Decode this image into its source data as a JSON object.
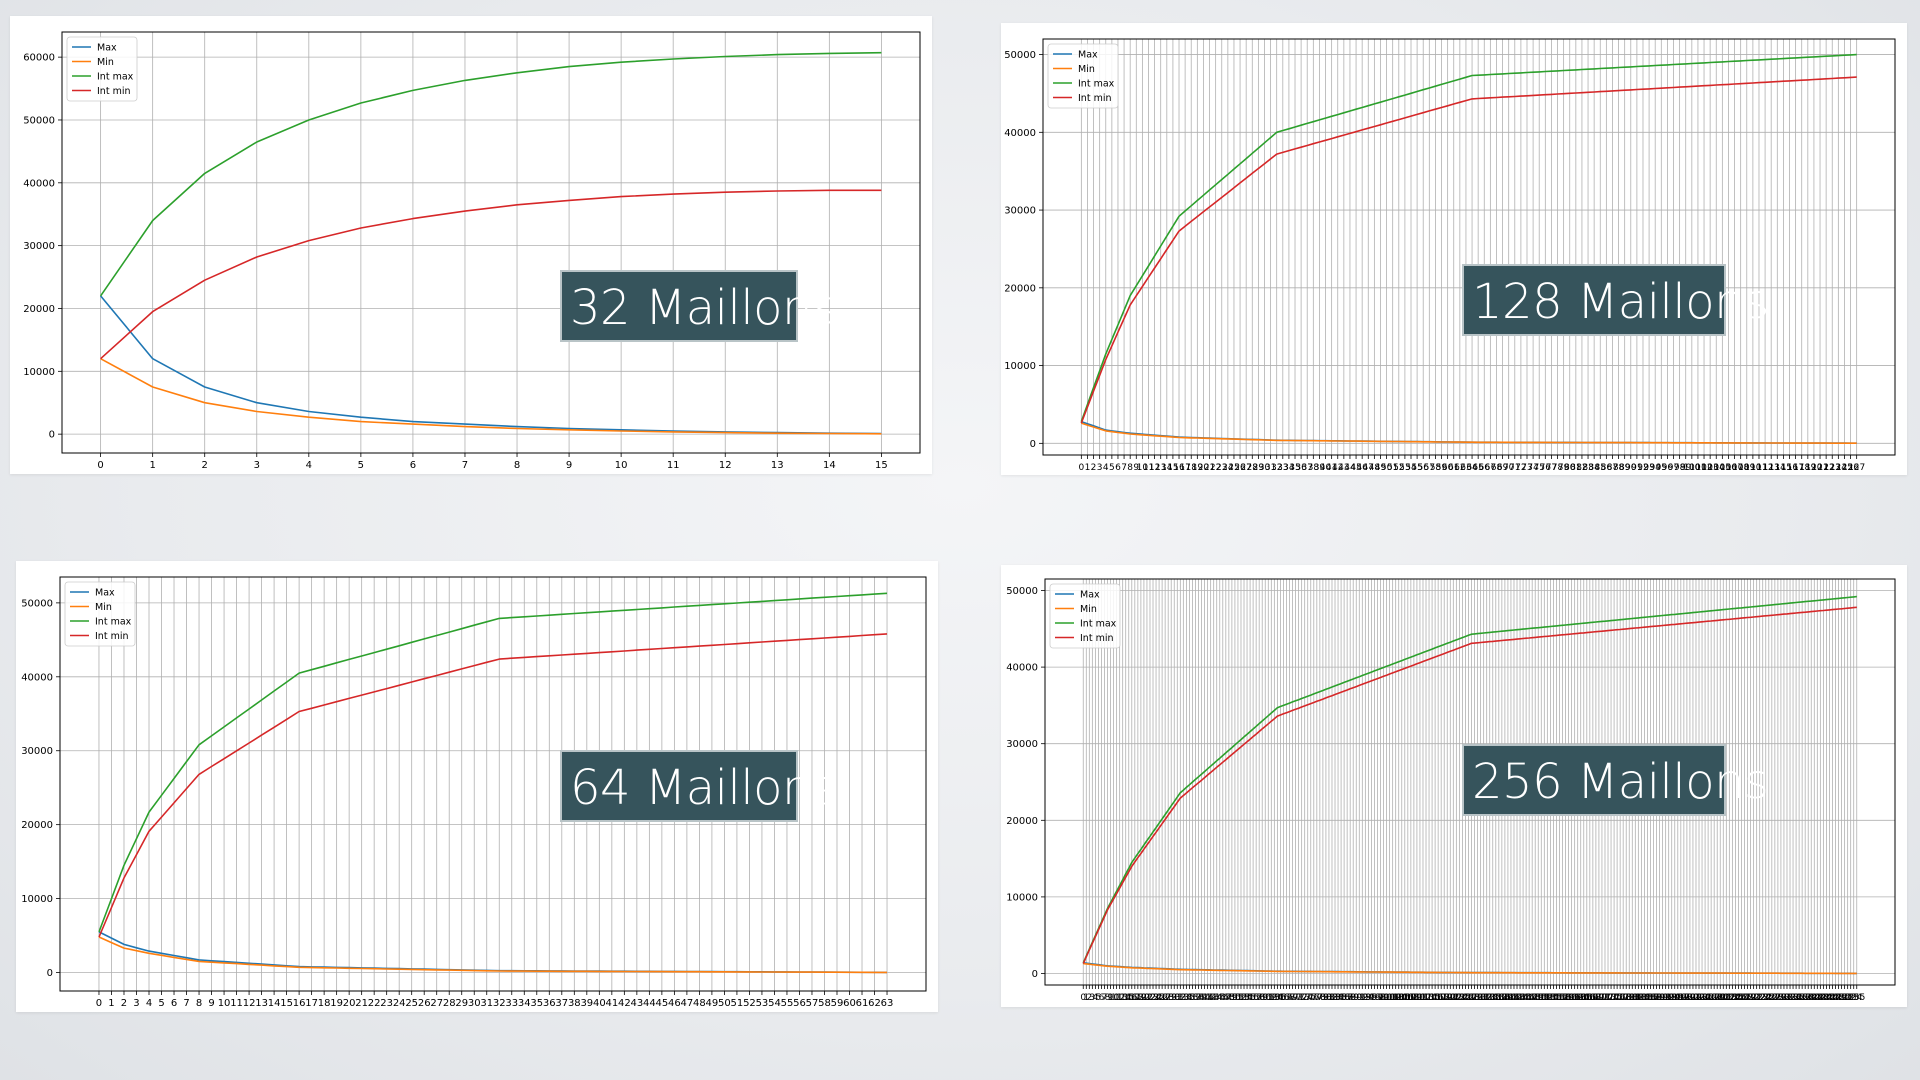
{
  "overlays": [
    {
      "text": "32 Maillons"
    },
    {
      "text": "128 Maillons"
    },
    {
      "text": "64 Maillons"
    },
    {
      "text": "256 Maillons"
    }
  ],
  "series_colors": {
    "Max": "#1f77b4",
    "Min": "#ff7f0e",
    "Int max": "#2ca02c",
    "Int min": "#d62728"
  },
  "chart_data": [
    {
      "type": "line",
      "title": "32 Maillons",
      "legend": [
        "Max",
        "Min",
        "Int max",
        "Int min"
      ],
      "legend_position": "top-left",
      "grid": true,
      "x": [
        0,
        1,
        2,
        3,
        4,
        5,
        6,
        7,
        8,
        9,
        10,
        11,
        12,
        13,
        14,
        15
      ],
      "ylim": [
        -3000,
        64000
      ],
      "yticks": [
        0,
        10000,
        20000,
        30000,
        40000,
        50000,
        60000
      ],
      "series": [
        {
          "name": "Max",
          "values": [
            22000,
            12000,
            7500,
            5000,
            3600,
            2700,
            2000,
            1600,
            1200,
            900,
            700,
            500,
            350,
            250,
            150,
            100
          ]
        },
        {
          "name": "Min",
          "values": [
            12000,
            7500,
            5000,
            3600,
            2700,
            2000,
            1600,
            1200,
            900,
            700,
            500,
            350,
            250,
            150,
            100,
            50
          ]
        },
        {
          "name": "Int max",
          "values": [
            22000,
            34000,
            41500,
            46500,
            50000,
            52700,
            54700,
            56300,
            57500,
            58500,
            59200,
            59700,
            60100,
            60400,
            60600,
            60700
          ]
        },
        {
          "name": "Int min",
          "values": [
            12000,
            19500,
            24500,
            28200,
            30800,
            32800,
            34300,
            35500,
            36500,
            37200,
            37800,
            38200,
            38500,
            38700,
            38800,
            38800
          ]
        }
      ]
    },
    {
      "type": "line",
      "title": "128 Maillons",
      "legend": [
        "Max",
        "Min",
        "Int max",
        "Int min"
      ],
      "legend_position": "top-left",
      "grid": true,
      "xlim": [
        0,
        127
      ],
      "ylim": [
        -1500,
        52000
      ],
      "yticks": [
        0,
        10000,
        20000,
        30000,
        40000,
        50000
      ],
      "series": [
        {
          "name": "Max",
          "x": [
            0,
            4,
            8,
            16,
            32,
            64,
            127
          ],
          "values": [
            2800,
            1700,
            1300,
            800,
            400,
            150,
            20
          ]
        },
        {
          "name": "Min",
          "x": [
            0,
            4,
            8,
            16,
            32,
            64,
            127
          ],
          "values": [
            2600,
            1600,
            1200,
            750,
            380,
            140,
            15
          ]
        },
        {
          "name": "Int max",
          "x": [
            0,
            4,
            8,
            16,
            32,
            64,
            127
          ],
          "values": [
            2800,
            11500,
            19000,
            29200,
            40000,
            47300,
            50000
          ]
        },
        {
          "name": "Int min",
          "x": [
            0,
            4,
            8,
            16,
            32,
            64,
            127
          ],
          "values": [
            2600,
            10800,
            17800,
            27300,
            37200,
            44300,
            47100
          ]
        }
      ]
    },
    {
      "type": "line",
      "title": "64 Maillons",
      "legend": [
        "Max",
        "Min",
        "Int max",
        "Int min"
      ],
      "legend_position": "top-left",
      "grid": true,
      "xlim": [
        0,
        63
      ],
      "ylim": [
        -2500,
        53500
      ],
      "yticks": [
        0,
        10000,
        20000,
        30000,
        40000,
        50000
      ],
      "series": [
        {
          "name": "Max",
          "x": [
            0,
            2,
            4,
            8,
            16,
            32,
            63
          ],
          "values": [
            5500,
            3800,
            2900,
            1700,
            800,
            250,
            20
          ]
        },
        {
          "name": "Min",
          "x": [
            0,
            2,
            4,
            8,
            16,
            32,
            63
          ],
          "values": [
            4800,
            3300,
            2600,
            1500,
            700,
            200,
            15
          ]
        },
        {
          "name": "Int max",
          "x": [
            0,
            2,
            4,
            8,
            16,
            32,
            63
          ],
          "values": [
            5500,
            14500,
            21700,
            30800,
            40500,
            47900,
            51300
          ]
        },
        {
          "name": "Int min",
          "x": [
            0,
            2,
            4,
            8,
            16,
            32,
            63
          ],
          "values": [
            4800,
            12800,
            19100,
            26800,
            35300,
            42400,
            45800
          ]
        }
      ]
    },
    {
      "type": "line",
      "title": "256 Maillons",
      "legend": [
        "Max",
        "Min",
        "Int max",
        "Int min"
      ],
      "legend_position": "top-left",
      "grid": true,
      "xlim": [
        0,
        255
      ],
      "ylim": [
        -1500,
        51500
      ],
      "yticks": [
        0,
        10000,
        20000,
        30000,
        40000,
        50000
      ],
      "series": [
        {
          "name": "Max",
          "x": [
            0,
            8,
            16,
            32,
            64,
            128,
            255
          ],
          "values": [
            1400,
            1000,
            800,
            550,
            300,
            120,
            20
          ]
        },
        {
          "name": "Min",
          "x": [
            0,
            8,
            16,
            32,
            64,
            128,
            255
          ],
          "values": [
            1300,
            950,
            750,
            500,
            280,
            110,
            15
          ]
        },
        {
          "name": "Int max",
          "x": [
            0,
            8,
            16,
            32,
            64,
            128,
            255
          ],
          "values": [
            1400,
            8500,
            14500,
            23600,
            34700,
            44300,
            49200
          ]
        },
        {
          "name": "Int min",
          "x": [
            0,
            8,
            16,
            32,
            64,
            128,
            255
          ],
          "values": [
            1300,
            8300,
            14000,
            22900,
            33600,
            43100,
            47800
          ]
        }
      ]
    }
  ]
}
